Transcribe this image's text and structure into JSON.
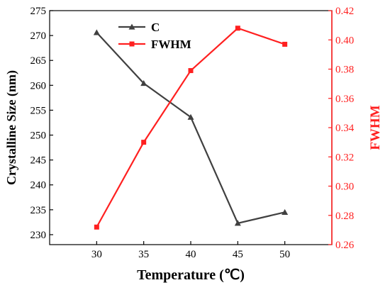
{
  "chart_data": {
    "type": "line",
    "x": [
      30,
      35,
      40,
      45,
      50
    ],
    "xlabel": "Temperature (℃)",
    "xlim": [
      25,
      55
    ],
    "xticks": [
      30,
      35,
      40,
      45,
      50
    ],
    "series": [
      {
        "name": "C",
        "axis": "left",
        "marker": "triangle",
        "color": "#404040",
        "values": [
          270.6,
          260.4,
          253.6,
          232.3,
          234.5
        ]
      },
      {
        "name": "FWHM",
        "axis": "right",
        "marker": "square",
        "color": "#ff2020",
        "values": [
          0.272,
          0.33,
          0.379,
          0.408,
          0.397
        ]
      }
    ],
    "ylabel_left": "Crystalline Size (nm)",
    "ylim_left": [
      228,
      275
    ],
    "yticks_left": [
      230,
      235,
      240,
      245,
      250,
      255,
      260,
      265,
      270,
      275
    ],
    "ylabel_right": "FWHM",
    "ylim_right": [
      0.26,
      0.42
    ],
    "yticks_right": [
      "0.26",
      "0.28",
      "0.30",
      "0.32",
      "0.34",
      "0.36",
      "0.38",
      "0.40",
      "0.42"
    ],
    "legend_position": "top-center",
    "grid": false
  }
}
